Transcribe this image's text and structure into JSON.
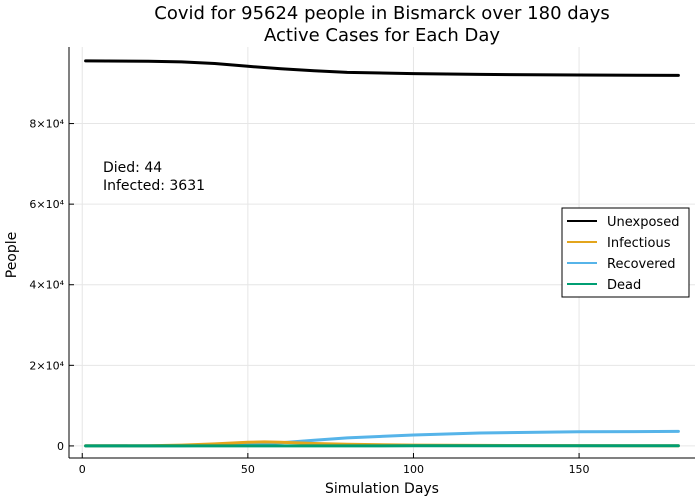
{
  "chart_data": {
    "type": "line",
    "title": "Covid for 95624 people in Bismarck over 180 days",
    "subtitle": "Active Cases for Each Day",
    "xlabel": "Simulation Days",
    "ylabel": "People",
    "xlim": [
      -4,
      185
    ],
    "ylim": [
      -3000,
      99000
    ],
    "x_ticks": [
      0,
      50,
      100,
      150
    ],
    "y_ticks": [
      0,
      20000,
      40000,
      60000,
      80000
    ],
    "y_tick_labels": [
      "0",
      "2×10⁴",
      "4×10⁴",
      "6×10⁴",
      "8×10⁴"
    ],
    "grid": true,
    "legend_position": "right",
    "annotations": [
      "Died: 44",
      "Infected: 3631"
    ],
    "series": [
      {
        "name": "Unexposed",
        "color": "#000000",
        "x": [
          1,
          20,
          30,
          40,
          50,
          60,
          70,
          80,
          100,
          120,
          150,
          180
        ],
        "y": [
          95550,
          95450,
          95300,
          94900,
          94200,
          93600,
          93100,
          92700,
          92400,
          92200,
          92050,
          91950
        ]
      },
      {
        "name": "Infectious",
        "color": "#E3A51C",
        "x": [
          1,
          20,
          30,
          40,
          50,
          55,
          60,
          70,
          80,
          100,
          130,
          180
        ],
        "y": [
          20,
          60,
          200,
          500,
          900,
          1000,
          900,
          600,
          400,
          200,
          100,
          40
        ]
      },
      {
        "name": "Recovered",
        "color": "#56B4E9",
        "x": [
          1,
          30,
          40,
          50,
          60,
          70,
          80,
          100,
          120,
          150,
          180
        ],
        "y": [
          0,
          50,
          150,
          400,
          800,
          1400,
          2000,
          2700,
          3200,
          3500,
          3600
        ]
      },
      {
        "name": "Dead",
        "color": "#009E73",
        "x": [
          1,
          50,
          100,
          150,
          180
        ],
        "y": [
          0,
          10,
          25,
          38,
          44
        ]
      }
    ]
  }
}
